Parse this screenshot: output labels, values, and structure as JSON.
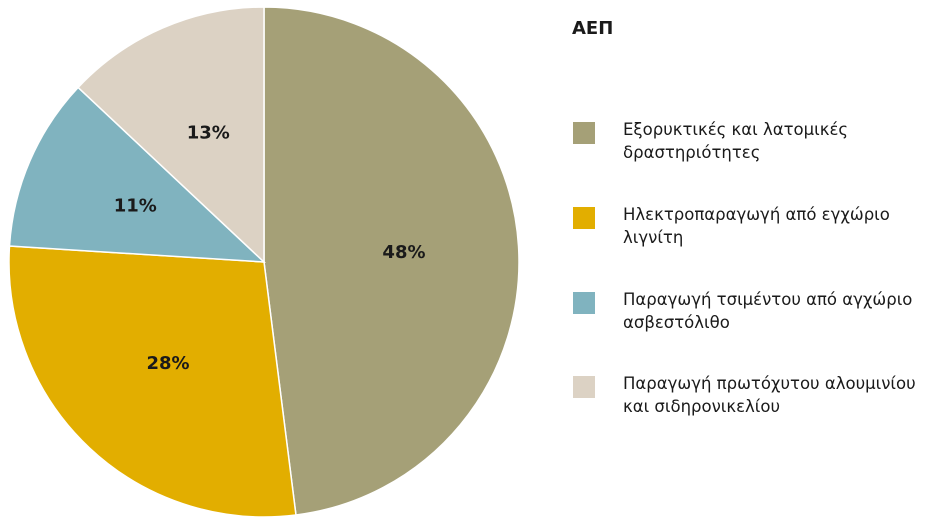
{
  "chart_data": {
    "type": "pie",
    "legend_title": "ΑΕΠ",
    "categories": [
      "Εξορυκτικές και λατομικές δραστηριότητες",
      "Ηλεκτροπαραγωγή από εγχώριο λιγνίτη",
      "Παραγωγή τσιμέντου από αγχώριο ασβεστόλιθο",
      "Παραγωγή πρωτόχυτου αλουμινίου και σιδηρονικελίου"
    ],
    "values": [
      48,
      28,
      11,
      13
    ],
    "value_labels": [
      "48%",
      "28%",
      "11%",
      "13%"
    ],
    "colors": [
      "#a5a077",
      "#e2ae00",
      "#80b3bf",
      "#dcd2c4"
    ],
    "legend": "right"
  }
}
